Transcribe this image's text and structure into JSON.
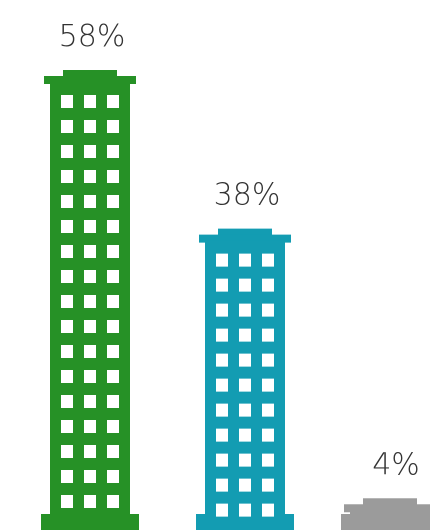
{
  "chart_data": {
    "type": "bar",
    "title": "",
    "xlabel": "",
    "ylabel": "",
    "ylim": [
      0,
      58
    ],
    "grid": false,
    "legend": "none",
    "categories": [
      "",
      "",
      ""
    ],
    "values": [
      58,
      38,
      4
    ],
    "value_labels": [
      "58%",
      "38%",
      "4%"
    ],
    "colors": [
      "#269126",
      "#139cb2",
      "#9b9b9b"
    ],
    "icon": "building-icon"
  }
}
